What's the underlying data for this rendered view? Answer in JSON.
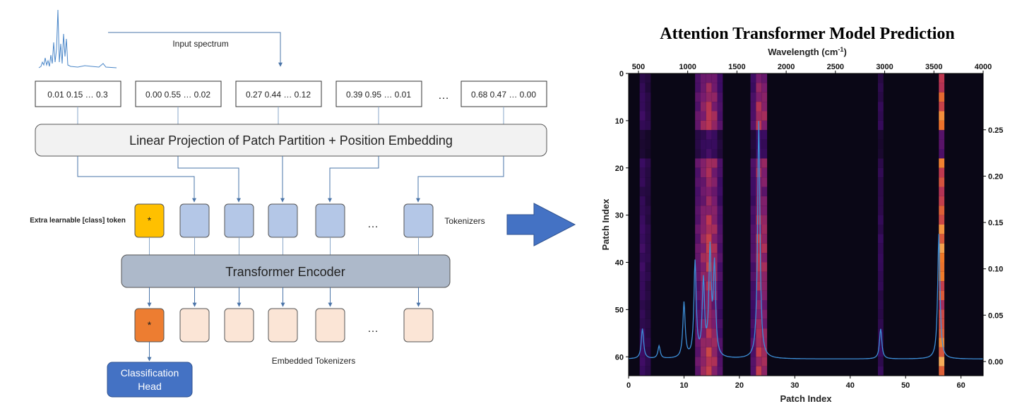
{
  "input": {
    "label": "Input spectrum",
    "patches": [
      "0.01 0.15 … 0.3",
      "0.00 0.55 … 0.02",
      "0.27 0.44 … 0.12",
      "0.39 0.95 … 0.01",
      "0.68 0.47 … 0.00"
    ],
    "ellipsis": "…"
  },
  "projection": {
    "label": "Linear Projection of Patch Partition + Position Embedding"
  },
  "tokens": {
    "class_token_label": "Extra learnable [class] token",
    "class_symbol": "*",
    "tokenizers_label": "Tokenizers",
    "ellipsis": "…",
    "class_color": "#FFC000",
    "token_color": "#B4C7E7"
  },
  "encoder": {
    "label": "Transformer Encoder"
  },
  "embedded": {
    "label": "Embedded Tokenizers",
    "class_symbol": "*",
    "ellipsis": "…",
    "class_color": "#ED7D31",
    "token_color": "#FBE5D6"
  },
  "head": {
    "line1": "Classification",
    "line2": "Head",
    "color": "#4472C4"
  },
  "chart": {
    "title": "Attention Transformer Model Prediction",
    "top_axis_label": "Wavelength (cm",
    "top_axis_sup": "-1",
    "top_axis_label_end": ")",
    "bottom_axis_label": "Patch Index",
    "left_axis_label": "Patch Index",
    "top_ticks": [
      "500",
      "1000",
      "1500",
      "2000",
      "2500",
      "3000",
      "3500",
      "4000"
    ],
    "bottom_ticks": [
      "0",
      "10",
      "20",
      "30",
      "40",
      "50",
      "60"
    ],
    "left_ticks": [
      "0",
      "10",
      "20",
      "30",
      "40",
      "50",
      "60"
    ],
    "right_ticks": [
      "0.25",
      "0.20",
      "0.15",
      "0.10",
      "0.05",
      "0.00"
    ]
  },
  "chart_data": {
    "type": "heatmap",
    "title": "Attention Transformer Model Prediction",
    "xlabel": "Patch Index",
    "ylabel": "Patch Index",
    "x2label": "Wavelength (cm-1)",
    "xlim": [
      0,
      64
    ],
    "ylim": [
      64,
      0
    ],
    "x2lim": [
      400,
      4000
    ],
    "colorbar_range": [
      0.0,
      0.27
    ],
    "colormap": "inferno",
    "hot_columns": [
      {
        "patch": 2,
        "intensity": 0.06
      },
      {
        "patch": 3,
        "intensity": 0.04
      },
      {
        "patch": 12,
        "intensity": 0.1
      },
      {
        "patch": 13,
        "intensity": 0.14
      },
      {
        "patch": 14,
        "intensity": 0.18
      },
      {
        "patch": 15,
        "intensity": 0.15
      },
      {
        "patch": 16,
        "intensity": 0.08
      },
      {
        "patch": 22,
        "intensity": 0.08
      },
      {
        "patch": 23,
        "intensity": 0.17
      },
      {
        "patch": 24,
        "intensity": 0.15
      },
      {
        "patch": 45,
        "intensity": 0.05
      },
      {
        "patch": 56,
        "intensity": 0.24
      }
    ],
    "spectrum_overlay": {
      "peaks_patch": [
        2.5,
        5.5,
        10,
        12,
        13.5,
        14.7,
        15.5,
        23.5,
        45.5,
        56
      ],
      "peaks_height": [
        0.12,
        0.05,
        0.22,
        0.38,
        0.3,
        0.42,
        0.36,
        0.95,
        0.12,
        0.5
      ]
    }
  }
}
